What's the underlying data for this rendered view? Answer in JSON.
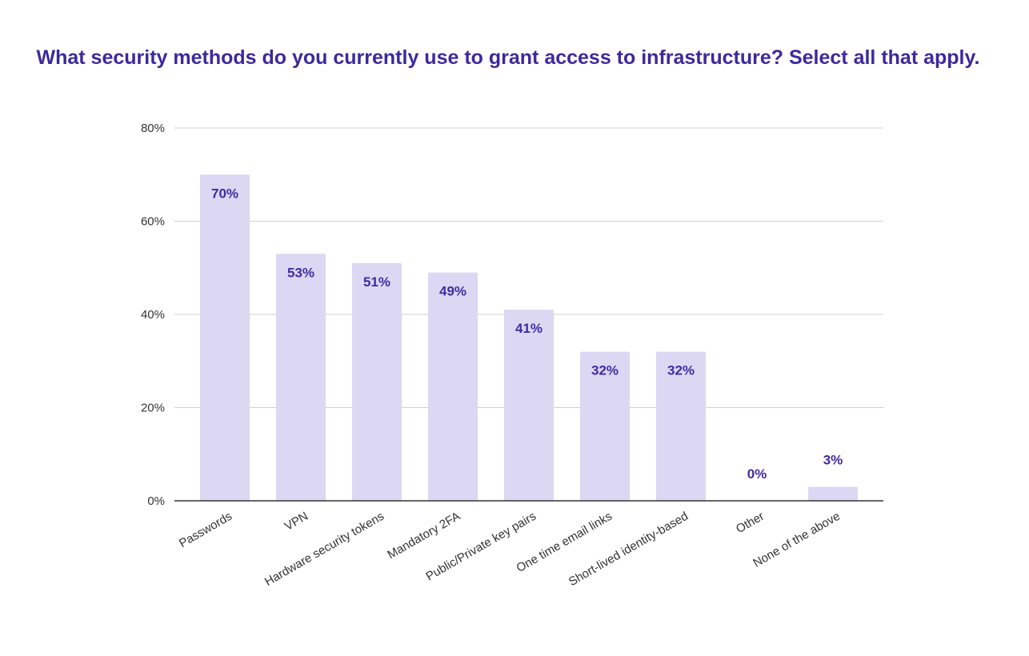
{
  "chart_data": {
    "type": "bar",
    "title": "What security methods do you currently use to grant access to infrastructure? Select all that apply.",
    "categories": [
      "Passwords",
      "VPN",
      "Hardware security tokens",
      "Mandatory 2FA",
      "Public/Private key pairs",
      "One time email links",
      "Short-lived identity-based",
      "Other",
      "None of the above"
    ],
    "values": [
      70,
      53,
      51,
      49,
      41,
      32,
      32,
      0,
      3
    ],
    "data_labels": [
      "70%",
      "53%",
      "51%",
      "49%",
      "41%",
      "32%",
      "32%",
      "0%",
      "3%"
    ],
    "ylim": [
      0,
      80
    ],
    "yticks": [
      0,
      20,
      40,
      60,
      80
    ],
    "ytick_labels": [
      "0%",
      "20%",
      "40%",
      "60%",
      "80%"
    ],
    "xlabel": "",
    "ylabel": "",
    "grid": true,
    "legend": "none",
    "colors": {
      "bar": "#dcd7f2",
      "label": "#3d2d9f",
      "title": "#3b2a9c",
      "grid": "#d0d0d0",
      "axis": "#333333",
      "tick": "#333333"
    }
  }
}
